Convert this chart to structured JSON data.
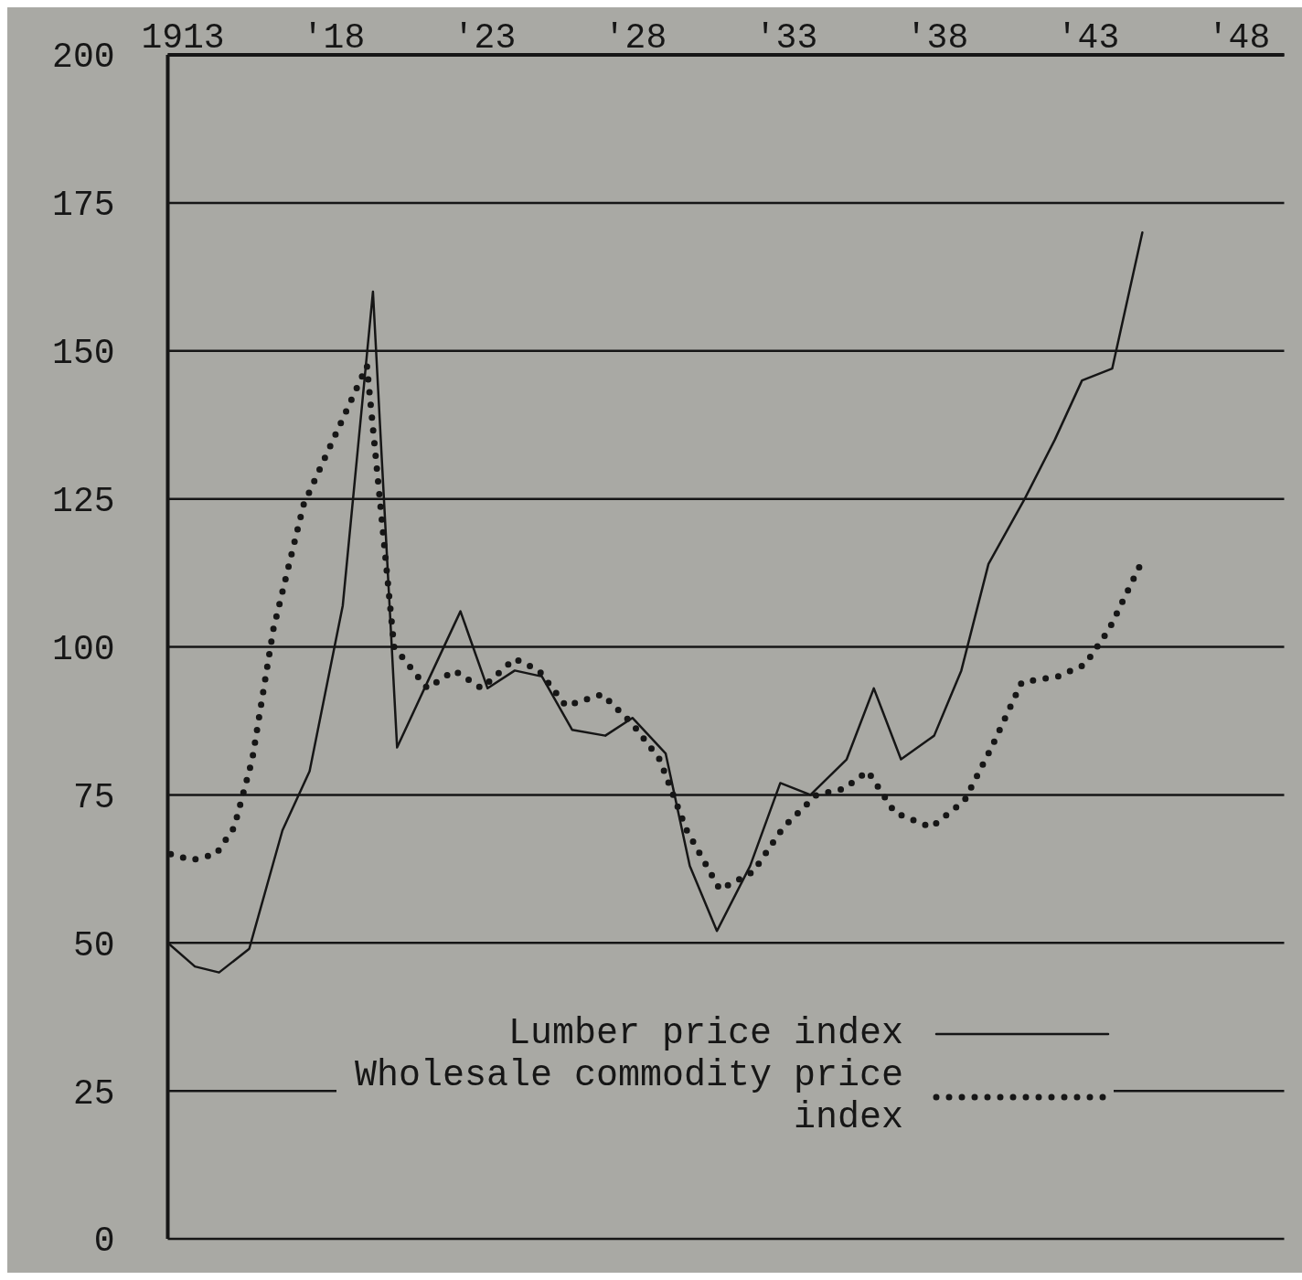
{
  "chart_data": {
    "type": "line",
    "series": [
      {
        "name": "Lumber price index",
        "color": "#161616",
        "line_style": "solid",
        "x": [
          1912.5,
          1913.4,
          1914.2,
          1915.2,
          1916.3,
          1917.2,
          1918.3,
          1919.3,
          1920.1,
          1921.1,
          1922.2,
          1923.1,
          1924,
          1924.9,
          1925.9,
          1927,
          1927.9,
          1929,
          1929.8,
          1930.7,
          1931.8,
          1932.8,
          1933.8,
          1935,
          1935.9,
          1936.8,
          1937.9,
          1938.8,
          1939.7,
          1940.9,
          1941.9,
          1942.8,
          1943.8,
          1944.8
        ],
        "values": [
          50,
          46,
          45,
          49,
          69,
          79,
          107,
          160,
          83,
          94,
          106,
          93,
          96,
          95,
          86,
          85,
          88,
          82,
          63,
          52,
          63,
          77,
          75,
          81,
          93,
          81,
          85,
          96,
          114,
          125,
          135,
          145,
          147,
          170
        ]
      },
      {
        "name": "Wholesale commodity price index",
        "color": "#161616",
        "line_style": "dotted",
        "x": [
          1912.6,
          1913.3,
          1914.1,
          1914.7,
          1915.3,
          1916,
          1917,
          1919.1,
          1920,
          1921.1,
          1922,
          1922.9,
          1924,
          1924.8,
          1925.7,
          1926.9,
          1927.9,
          1928.8,
          1929.7,
          1930.8,
          1931.9,
          1932.9,
          1934,
          1934.9,
          1935.7,
          1936.6,
          1937.8,
          1938.9,
          1939.8,
          1940.8,
          1942,
          1942.9,
          1943.7,
          1944.7
        ],
        "values": [
          65,
          64,
          65,
          69.5,
          81,
          103,
          124,
          147.5,
          100,
          93,
          96,
          93,
          98,
          96,
          90,
          92,
          87,
          81,
          69,
          59,
          62,
          69.5,
          75,
          76,
          79,
          72,
          69.5,
          74,
          83,
          94,
          95,
          97,
          103,
          113.5
        ]
      }
    ],
    "xlim": [
      1912.5,
      1949.5
    ],
    "xticks": [
      1913,
      {
        "value": 1918,
        "label": "'18"
      },
      {
        "value": 1923,
        "label": "'23"
      },
      {
        "value": 1928,
        "label": "'28"
      },
      {
        "value": 1933,
        "label": "'33"
      },
      {
        "value": 1938,
        "label": "'38"
      },
      {
        "value": 1943,
        "label": "'43"
      },
      {
        "value": 1948,
        "label": "'48"
      }
    ],
    "ylim": [
      0,
      200
    ],
    "yticks": [
      0,
      25,
      50,
      75,
      100,
      125,
      150,
      175,
      200
    ],
    "grid": "y",
    "legend": "bottom",
    "marker": "none"
  }
}
